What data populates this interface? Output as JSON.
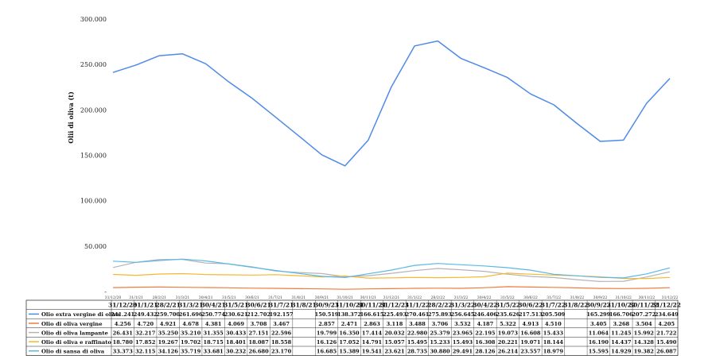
{
  "chart_data": {
    "type": "line",
    "ylabel": "Olii di oliva (t)",
    "ylim": [
      0,
      300000
    ],
    "yticks": [
      "-",
      "50.000",
      "100.000",
      "150.000",
      "200.000",
      "250.000",
      "300.000"
    ],
    "grid": false,
    "legend": "data-table-below",
    "categories": [
      "31/12/20",
      "31/1/21",
      "28/2/21",
      "31/3/21",
      "30/4/21",
      "31/5/21",
      "30/6/21",
      "31/7/21",
      "31/8/21",
      "30/9/21",
      "31/10/21",
      "30/11/21",
      "31/12/21",
      "31/1/22",
      "28/2/22",
      "31/3/22",
      "30/4/22",
      "31/5/22",
      "30/6/22",
      "31/7/22",
      "31/8/22",
      "30/9/22",
      "31/10/22",
      "30/11/22",
      "31/12/22"
    ],
    "series": [
      {
        "name": "Olio extra vergine di oliva",
        "color": "#4e8ae8",
        "values": [
          241241,
          249432,
          259700,
          261696,
          250774,
          230621,
          212702,
          192157,
          171500,
          150519,
          138372,
          166615,
          225493,
          270461,
          275893,
          256645,
          246406,
          235626,
          217513,
          205509,
          185000,
          165299,
          166706,
          207272,
          234649
        ],
        "labels": [
          "241.241",
          "249.432",
          "259.700",
          "261.696",
          "250.774",
          "230.621",
          "212.702",
          "192.157",
          "",
          "150.519",
          "138.372",
          "166.615",
          "225.493",
          "270.461",
          "275.893",
          "256.645",
          "246.406",
          "235.626",
          "217.513",
          "205.509",
          "",
          "165.299",
          "166.706",
          "207.272",
          "234.649"
        ]
      },
      {
        "name": "Olio di oliva vergine",
        "color": "#f07b3f",
        "values": [
          4256,
          4720,
          4921,
          4678,
          4381,
          4069,
          3708,
          3467,
          3150,
          2857,
          2471,
          2863,
          3118,
          3488,
          3706,
          3532,
          4187,
          5322,
          4913,
          4510,
          4000,
          3405,
          3268,
          3504,
          4205
        ],
        "labels": [
          "4.256",
          "4.720",
          "4.921",
          "4.678",
          "4.381",
          "4.069",
          "3.708",
          "3.467",
          "",
          "2.857",
          "2.471",
          "2.863",
          "3.118",
          "3.488",
          "3.706",
          "3.532",
          "4.187",
          "5.322",
          "4.913",
          "4.510",
          "",
          "3.405",
          "3.268",
          "3.504",
          "4.205"
        ]
      },
      {
        "name": "Olio di oliva lampante",
        "color": "#b4b4b4",
        "values": [
          26431,
          32217,
          35250,
          35210,
          31355,
          30433,
          27151,
          22596,
          20900,
          19799,
          16350,
          17414,
          20032,
          22980,
          25379,
          23965,
          22195,
          19073,
          16608,
          15433,
          13000,
          11064,
          11245,
          15992,
          21722
        ],
        "labels": [
          "26.431",
          "32.217",
          "35.250",
          "35.210",
          "31.355",
          "30.433",
          "27.151",
          "22.596",
          "",
          "19.799",
          "16.350",
          "17.414",
          "20.032",
          "22.980",
          "25.379",
          "23.965",
          "22.195",
          "19.073",
          "16.608",
          "15.433",
          "",
          "11.064",
          "11.245",
          "15.992",
          "21.722"
        ]
      },
      {
        "name": "Olio di oliva e raffinato",
        "color": "#f5b82e",
        "values": [
          18780,
          17852,
          19267,
          19702,
          18715,
          18401,
          18087,
          18558,
          17400,
          16126,
          17052,
          14791,
          15057,
          15495,
          15233,
          15493,
          16308,
          20221,
          19071,
          18144,
          17200,
          16190,
          14437,
          14328,
          15490
        ],
        "labels": [
          "18.780",
          "17.852",
          "19.267",
          "19.702",
          "18.715",
          "18.401",
          "18.087",
          "18.558",
          "",
          "16.126",
          "17.052",
          "14.791",
          "15.057",
          "15.495",
          "15.233",
          "15.493",
          "16.308",
          "20.221",
          "19.071",
          "18.144",
          "",
          "16.190",
          "14.437",
          "14.328",
          "15.490"
        ]
      },
      {
        "name": "Olio di sansa di oliva",
        "color": "#5cb6e6",
        "values": [
          33373,
          32115,
          34126,
          35719,
          33681,
          30232,
          26680,
          23170,
          19900,
          16685,
          15389,
          19541,
          23621,
          28735,
          30880,
          29491,
          28126,
          26214,
          23557,
          18979,
          17300,
          15595,
          14929,
          19382,
          26087
        ],
        "labels": [
          "33.373",
          "32.115",
          "34.126",
          "35.719",
          "33.681",
          "30.232",
          "26.680",
          "23.170",
          "",
          "16.685",
          "15.389",
          "19.541",
          "23.621",
          "28.735",
          "30.880",
          "29.491",
          "28.126",
          "26.214",
          "23.557",
          "18.979",
          "",
          "15.595",
          "14.929",
          "19.382",
          "26.087"
        ]
      }
    ]
  }
}
